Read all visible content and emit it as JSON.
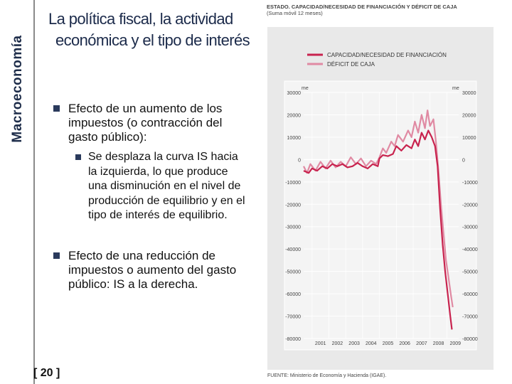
{
  "sidebar": {
    "title": "Macroeconomía"
  },
  "slide": {
    "title_line1": "La política fiscal, la actividad",
    "title_line2": "económica y el tipo de interés"
  },
  "bullets": {
    "b1": "Efecto de un aumento de los impuestos (o contracción del gasto público):",
    "b1_sub": "Se desplaza la curva IS hacia la izquierda, lo que produce una disminución en el nivel de producción de equilibrio y en el tipo de interés de equilibrio.",
    "b2_pre": "Efecto de una reducción de impuestos o aumento del gasto público",
    "b2_post": ": IS a la derecha."
  },
  "page_number": "[ 20 ]",
  "chart_heading": {
    "line1": "ESTADO. CAPACIDAD/NECESIDAD DE FINANCIACIÓN Y DÉFICIT DE CAJA",
    "line2": "(Suma móvil 12 meses)"
  },
  "chart_source": "FUENTE: Ministerio de Economía y Hacienda (IGAE).",
  "colors": {
    "series1": "#c8234e",
    "series2": "#e08aa3",
    "panel": "#e9e9e9"
  },
  "chart_data": {
    "type": "line",
    "unit_label": "me",
    "title": "ESTADO. CAPACIDAD/NECESIDAD DE FINANCIACIÓN Y DÉFICIT DE CAJA",
    "subtitle": "(Suma móvil 12 meses)",
    "ylim": [
      -80000,
      30000
    ],
    "yticks": [
      30000,
      20000,
      10000,
      0,
      -10000,
      -20000,
      -30000,
      -40000,
      -50000,
      -60000,
      -70000,
      -80000
    ],
    "xlim": [
      2000.5,
      2009.7
    ],
    "xticks": [
      "2001",
      "2002",
      "2003",
      "2004",
      "2005",
      "2006",
      "2007",
      "2008",
      "2009"
    ],
    "legend": [
      "CAPACIDAD/NECESIDAD DE FINANCIACIÓN",
      "DÉFICIT DE CAJA"
    ],
    "series": [
      {
        "name": "CAPACIDAD/NECESIDAD DE FINANCIACIÓN",
        "points": [
          [
            2000.5,
            -5000
          ],
          [
            2000.8,
            -6000
          ],
          [
            2001.0,
            -4000
          ],
          [
            2001.3,
            -5000
          ],
          [
            2001.6,
            -3000
          ],
          [
            2001.9,
            -4000
          ],
          [
            2002.2,
            -2000
          ],
          [
            2002.5,
            -3000
          ],
          [
            2002.8,
            -2000
          ],
          [
            2003.1,
            -3500
          ],
          [
            2003.4,
            -3000
          ],
          [
            2003.7,
            -1500
          ],
          [
            2004.0,
            -3000
          ],
          [
            2004.3,
            -4000
          ],
          [
            2004.6,
            -2000
          ],
          [
            2004.9,
            -3000
          ],
          [
            2005.0,
            500
          ],
          [
            2005.2,
            2000
          ],
          [
            2005.5,
            1500
          ],
          [
            2005.8,
            2500
          ],
          [
            2006.0,
            6000
          ],
          [
            2006.3,
            4000
          ],
          [
            2006.6,
            6500
          ],
          [
            2006.9,
            5000
          ],
          [
            2007.1,
            9000
          ],
          [
            2007.3,
            6000
          ],
          [
            2007.5,
            12000
          ],
          [
            2007.7,
            9000
          ],
          [
            2007.9,
            13000
          ],
          [
            2008.1,
            10000
          ],
          [
            2008.3,
            6000
          ],
          [
            2008.45,
            -3000
          ],
          [
            2008.6,
            -22000
          ],
          [
            2008.75,
            -38000
          ],
          [
            2008.9,
            -50000
          ],
          [
            2009.05,
            -60000
          ],
          [
            2009.2,
            -70000
          ],
          [
            2009.3,
            -76000
          ]
        ]
      },
      {
        "name": "DÉFICIT DE CAJA",
        "points": [
          [
            2000.5,
            -3000
          ],
          [
            2000.7,
            -6000
          ],
          [
            2000.9,
            -2000
          ],
          [
            2001.2,
            -5000
          ],
          [
            2001.5,
            -1000
          ],
          [
            2001.8,
            -4000
          ],
          [
            2002.1,
            -500
          ],
          [
            2002.4,
            -3500
          ],
          [
            2002.7,
            -1000
          ],
          [
            2003.0,
            -3000
          ],
          [
            2003.3,
            1000
          ],
          [
            2003.6,
            -2000
          ],
          [
            2003.9,
            500
          ],
          [
            2004.2,
            -3000
          ],
          [
            2004.5,
            -500
          ],
          [
            2004.8,
            -2000
          ],
          [
            2005.0,
            1000
          ],
          [
            2005.2,
            5000
          ],
          [
            2005.4,
            3000
          ],
          [
            2005.7,
            8000
          ],
          [
            2005.9,
            6000
          ],
          [
            2006.1,
            11000
          ],
          [
            2006.4,
            8000
          ],
          [
            2006.7,
            13000
          ],
          [
            2006.9,
            10000
          ],
          [
            2007.1,
            17000
          ],
          [
            2007.3,
            12000
          ],
          [
            2007.5,
            20000
          ],
          [
            2007.7,
            14000
          ],
          [
            2007.85,
            22000
          ],
          [
            2008.0,
            15000
          ],
          [
            2008.2,
            18000
          ],
          [
            2008.35,
            8000
          ],
          [
            2008.5,
            -5000
          ],
          [
            2008.65,
            -20000
          ],
          [
            2008.8,
            -33000
          ],
          [
            2008.95,
            -45000
          ],
          [
            2009.1,
            -53000
          ],
          [
            2009.25,
            -61000
          ],
          [
            2009.35,
            -66000
          ]
        ]
      }
    ]
  }
}
